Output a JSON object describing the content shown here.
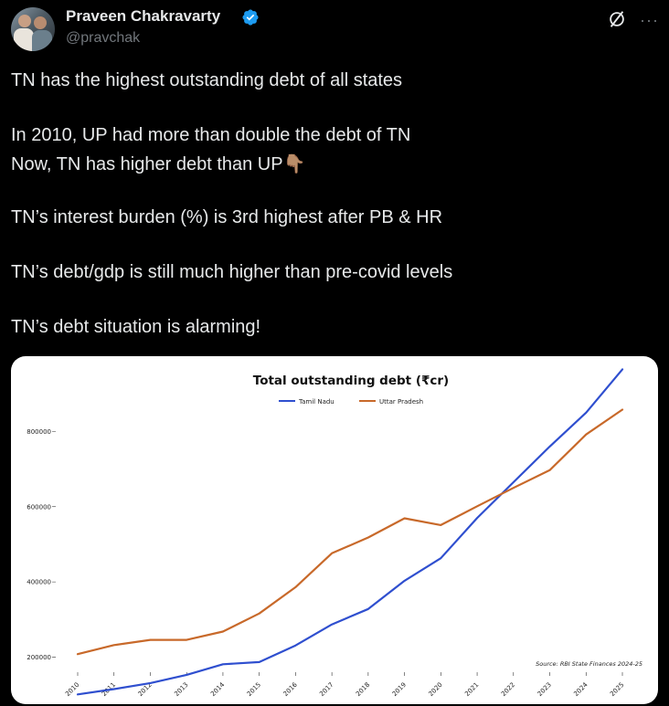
{
  "author": {
    "name": "Praveen Chakravarty",
    "handle": "@pravchak"
  },
  "icons": {
    "verified": "verified-badge-icon",
    "grok": "grok-icon",
    "more": "more-options-icon"
  },
  "tweet": {
    "lines": [
      "TN has the highest outstanding debt of all states",
      "In 2010, UP had more than double the debt of TN",
      "Now, TN has higher debt than UP👇🏽",
      "TN’s interest burden (%) is 3rd highest after PB & HR",
      "TN’s debt/gdp is still much higher than pre-covid levels",
      "TN’s debt situation is alarming!"
    ]
  },
  "chart_data": {
    "type": "line",
    "title": "Total outstanding debt (₹cr)",
    "source": "Source: RBI State Finances 2024-25",
    "legend_position": "top-center",
    "grid": false,
    "x": [
      "2010",
      "2011",
      "2012",
      "2013",
      "2014",
      "2015",
      "2016",
      "2017",
      "2018",
      "2019",
      "2020",
      "2021",
      "2022",
      "2023",
      "2024",
      "2025"
    ],
    "ylim": [
      75000,
      1000000
    ],
    "yticks": [
      200000,
      400000,
      600000,
      800000
    ],
    "ytick_labels": [
      "200000",
      "400000",
      "600000",
      "800000"
    ],
    "series": [
      {
        "name": "Tamil Nadu",
        "color": "#2f4fcf",
        "values": [
          101000,
          115000,
          131000,
          153000,
          181000,
          187000,
          231000,
          287000,
          328000,
          403000,
          463000,
          570000,
          665000,
          760000,
          850000,
          965000
        ]
      },
      {
        "name": "Uttar Pradesh",
        "color": "#c8692a",
        "values": [
          208000,
          232000,
          246000,
          246000,
          268000,
          316000,
          386000,
          476000,
          518000,
          569000,
          551000,
          601000,
          650000,
          697000,
          792000,
          858000
        ]
      }
    ]
  }
}
